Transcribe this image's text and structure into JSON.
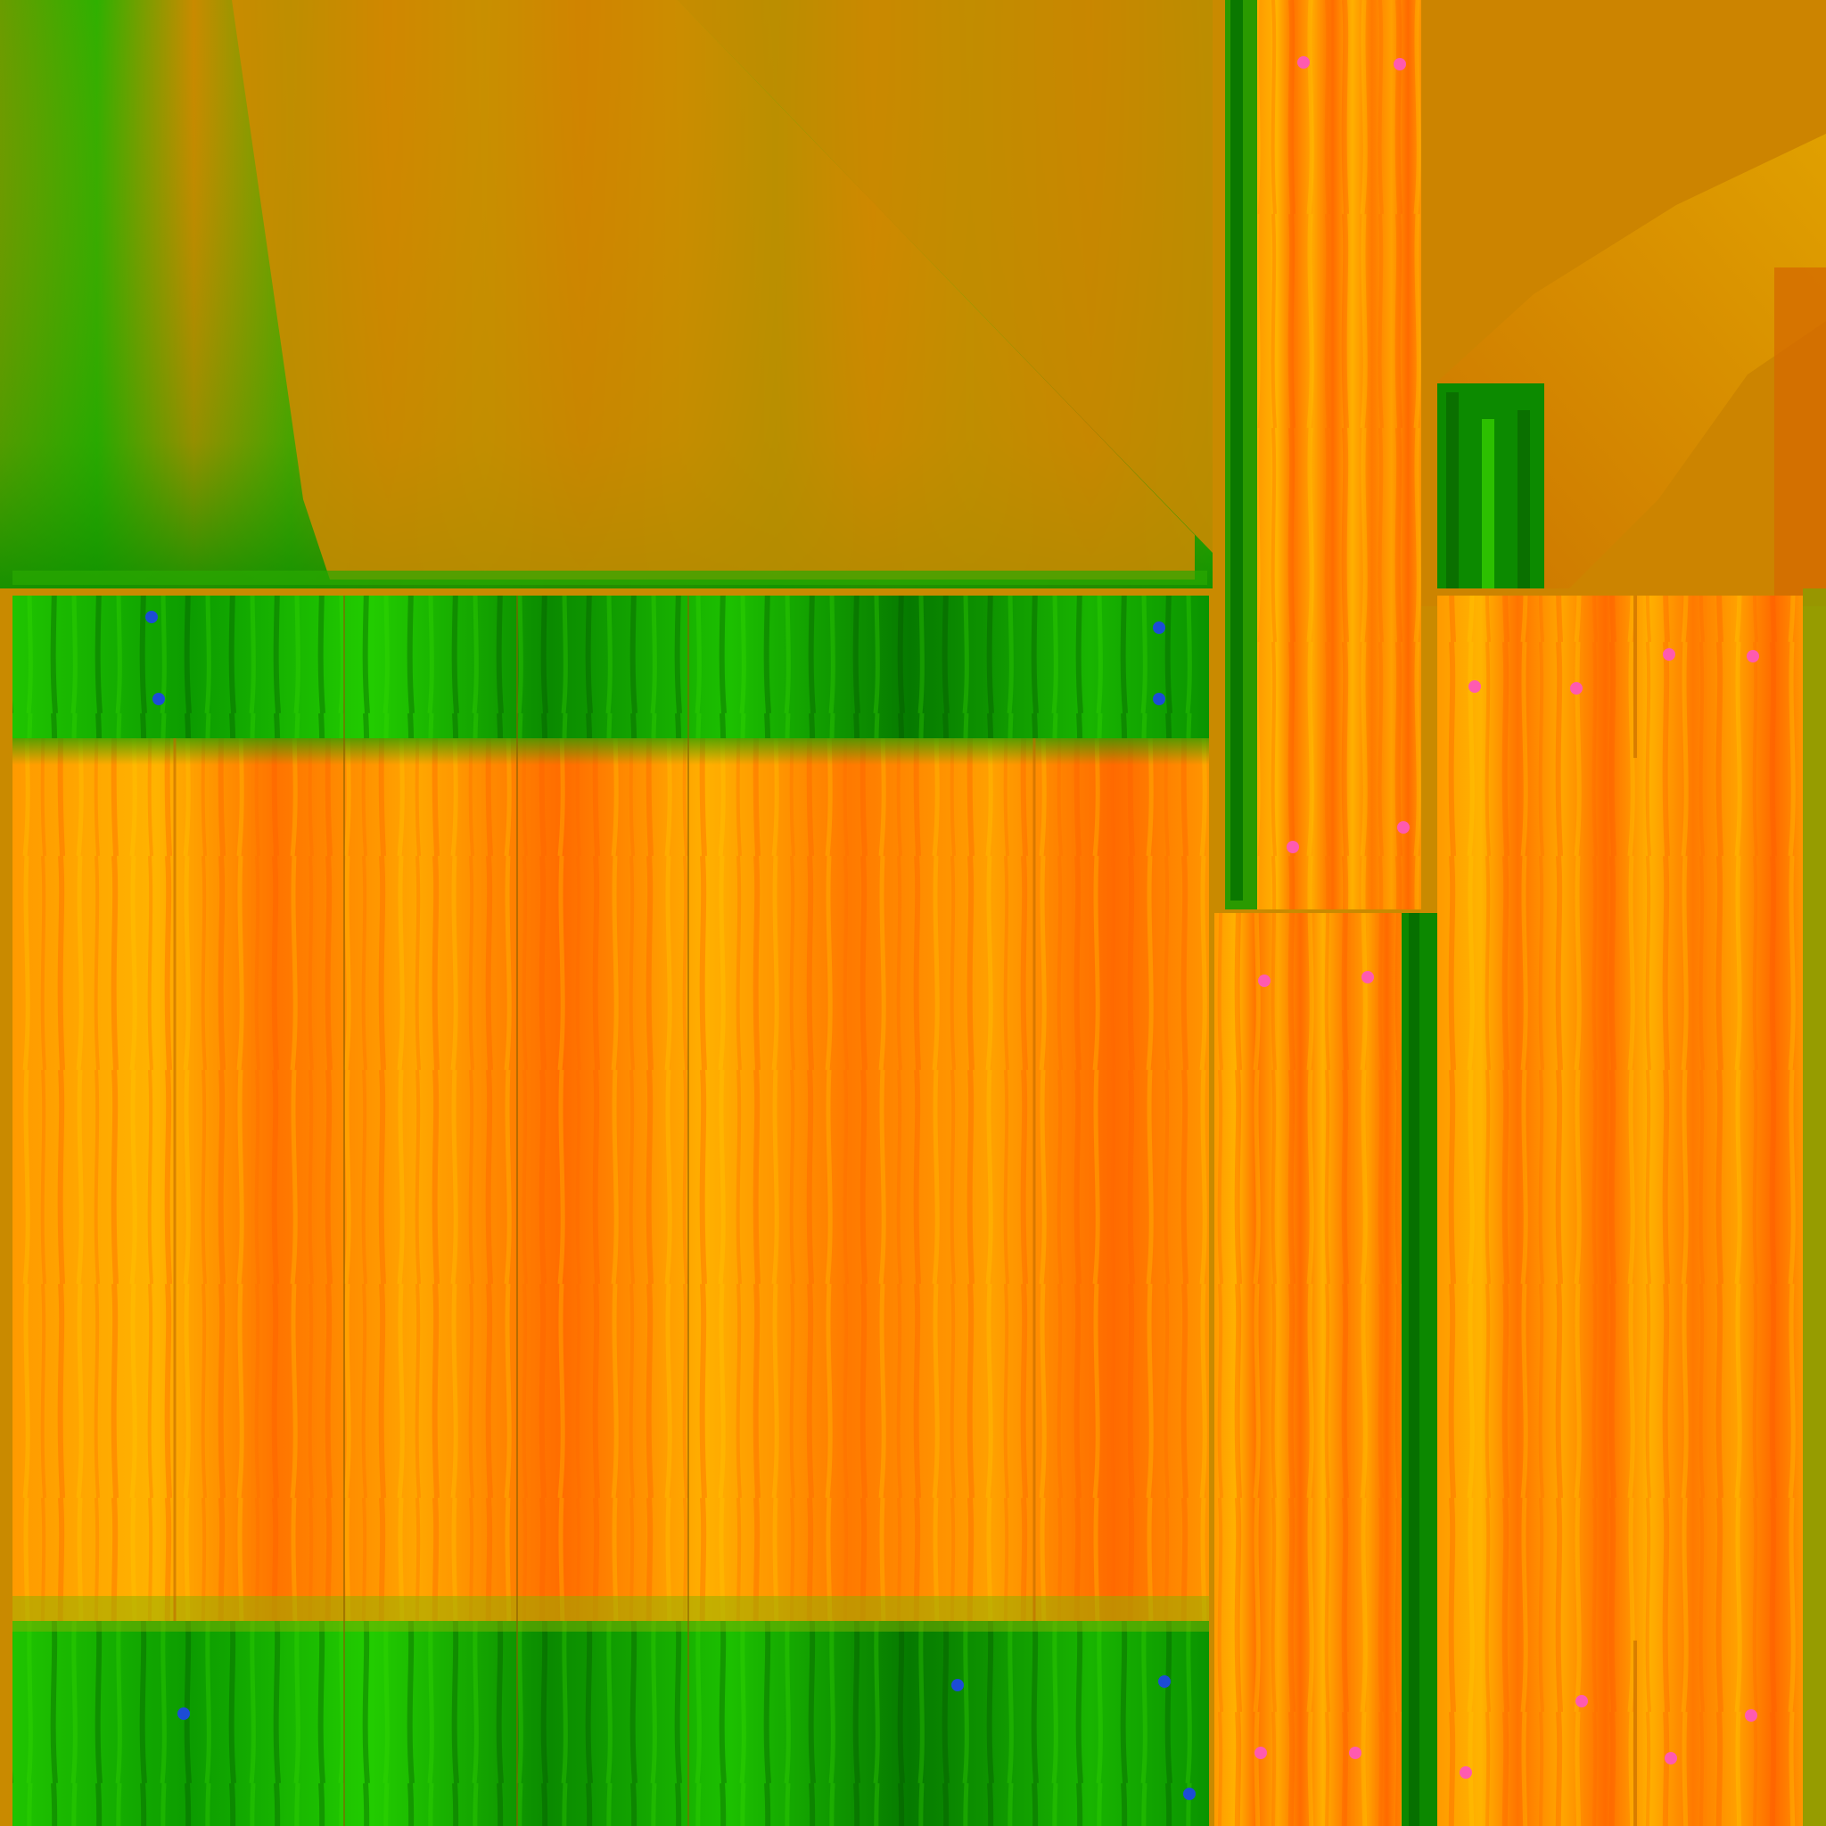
{
  "texture": {
    "palette": {
      "bg_amber": "#c98a00",
      "orange_deep": "#ff6a00",
      "orange_mid": "#ff8c00",
      "yellow_hot": "#ffc000",
      "green_bright": "#1fd400",
      "green_mid": "#0fae00",
      "green_dark": "#067a00",
      "ochre": "#d69a00",
      "marker_pink": "#ff5ab0",
      "marker_blue": "#1c4cd6"
    }
  }
}
